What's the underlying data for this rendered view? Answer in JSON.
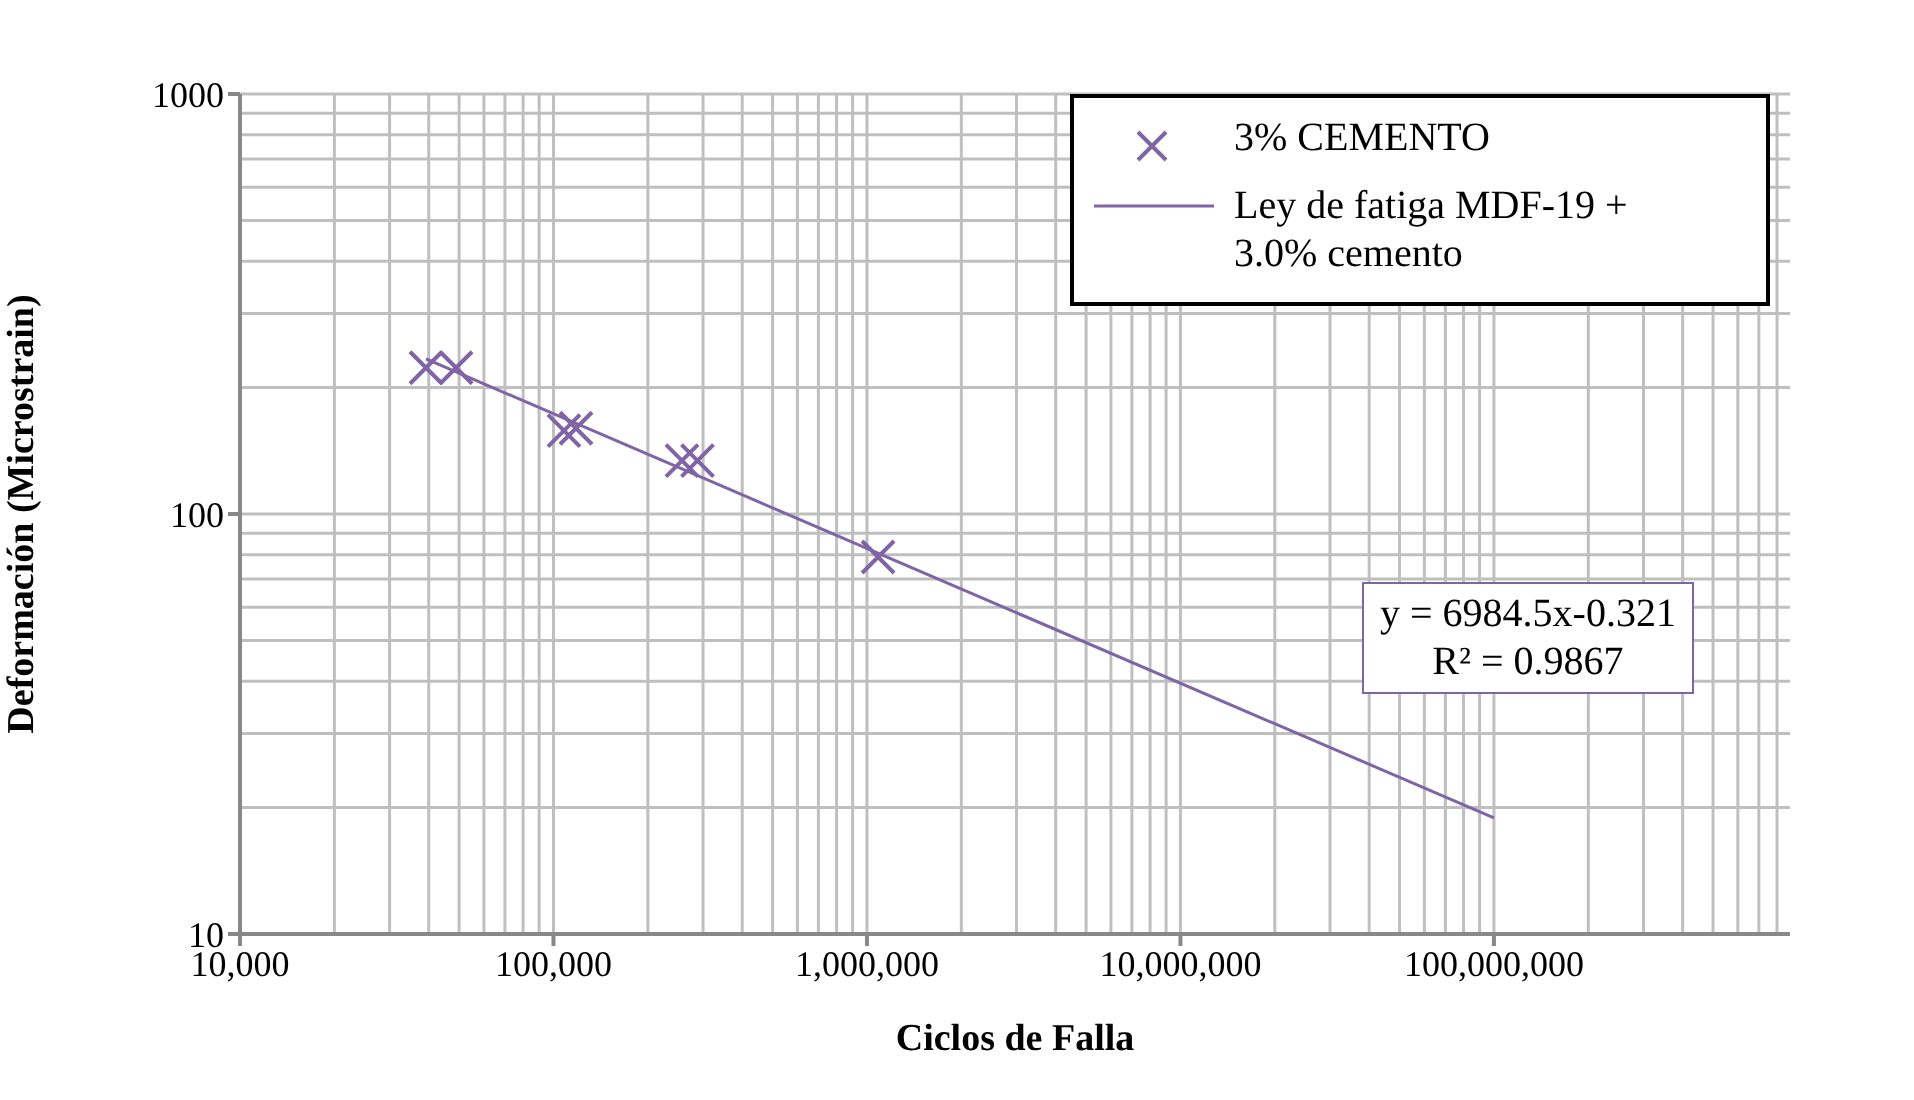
{
  "chart_data": {
    "type": "scatter",
    "xlabel": "Ciclos de Falla",
    "ylabel": "Deformación (Microstrain)",
    "log": "xy",
    "grid": true,
    "legend": "top right",
    "xlim": [
      10000,
      880000000
    ],
    "xticks": [
      {
        "value": 10000,
        "label": "10,000"
      },
      {
        "value": 100000,
        "label": "100,000"
      },
      {
        "value": 1000000,
        "label": "1,000,000"
      },
      {
        "value": 10000000,
        "label": "10,000,000"
      },
      {
        "value": 100000000,
        "label": "100,000,000"
      }
    ],
    "ylim": [
      10,
      1000
    ],
    "yticks": [
      10,
      100,
      1000
    ],
    "series": [
      {
        "name": "3% CEMENTO",
        "marker": "cross",
        "color": "#7f64a6",
        "x": [
          39200,
          48900,
          108000,
          118000,
          257000,
          288000,
          1085000
        ],
        "values": [
          223,
          223,
          158,
          160,
          134,
          134,
          79
        ]
      },
      {
        "name": "Ley de fatiga MDF-19 + 3.0% cemento",
        "type": "line",
        "marker": "none",
        "color": "#7f64a6",
        "line_style": "solid",
        "x": [
          39200,
          100000000
        ],
        "values": [
          234,
          18.9
        ]
      }
    ],
    "annotations": [
      "y = 6984.5x-0.321",
      "R² = 0.9867"
    ]
  }
}
